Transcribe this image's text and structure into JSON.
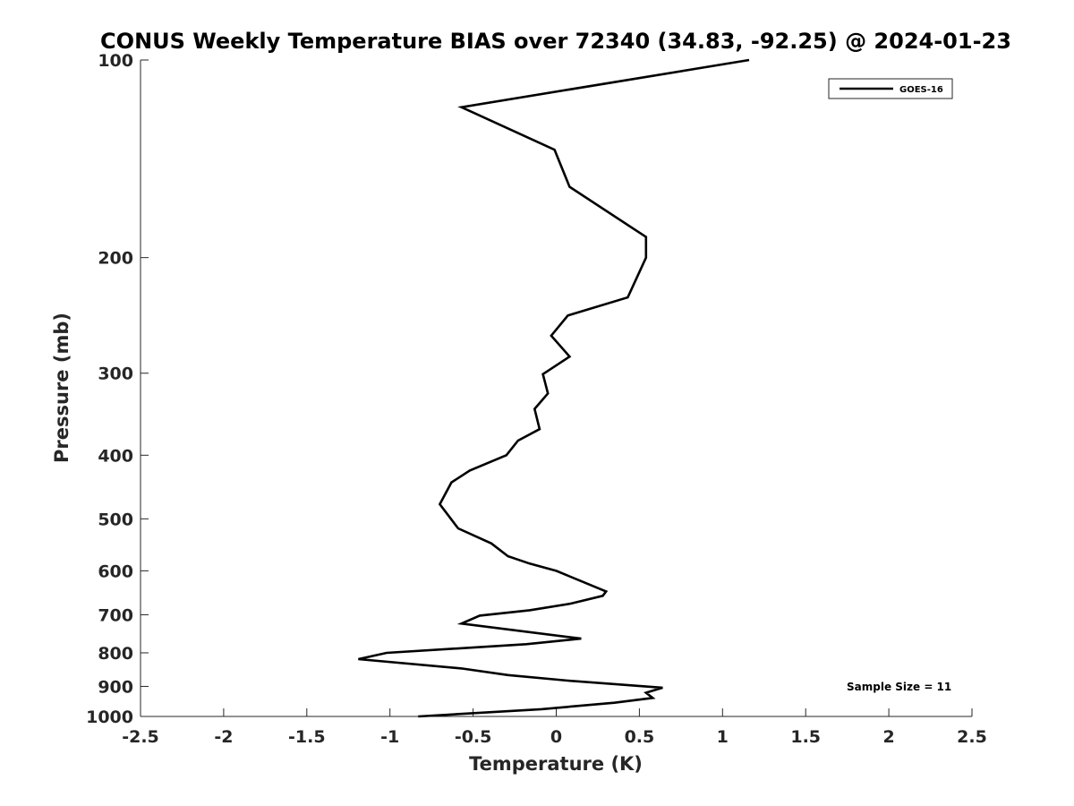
{
  "chart_data": {
    "type": "line",
    "title": "CONUS Weekly Temperature BIAS over 72340 (34.83, -92.25) @ 2024-01-23",
    "xlabel": "Temperature (K)",
    "ylabel": "Pressure (mb)",
    "xlim": [
      -2.5,
      2.5
    ],
    "ylim": [
      100,
      1000
    ],
    "y_scale": "log",
    "y_reversed": true,
    "grid": false,
    "legend_position": "top-right",
    "x_ticks": [
      "-2.5",
      "-2",
      "-1.5",
      "-1",
      "-0.5",
      "0",
      "0.5",
      "1",
      "1.5",
      "2",
      "2.5"
    ],
    "x_tick_values": [
      -2.5,
      -2,
      -1.5,
      -1,
      -0.5,
      0,
      0.5,
      1,
      1.5,
      2,
      2.5
    ],
    "y_ticks": [
      "100",
      "200",
      "300",
      "400",
      "500",
      "600",
      "700",
      "800",
      "900",
      "1000"
    ],
    "y_tick_values": [
      100,
      200,
      300,
      400,
      500,
      600,
      700,
      800,
      900,
      1000
    ],
    "series": [
      {
        "name": "GOES-16",
        "color": "#000000",
        "x": [
          1.16,
          -0.57,
          -0.01,
          0.08,
          0.54,
          0.54,
          0.43,
          0.07,
          -0.03,
          0.08,
          -0.08,
          -0.05,
          -0.13,
          -0.1,
          -0.23,
          -0.3,
          -0.52,
          -0.63,
          -0.7,
          -0.59,
          -0.39,
          -0.29,
          -0.16,
          0.0,
          0.3,
          0.28,
          0.09,
          -0.16,
          -0.46,
          -0.57,
          0.15,
          -0.18,
          -1.02,
          -1.19,
          -0.57,
          -0.29,
          0.07,
          0.64,
          0.54,
          0.58,
          0.35,
          -0.09,
          -0.83
        ],
        "y": [
          100,
          118,
          137,
          156,
          186,
          200,
          230,
          245,
          263,
          283,
          301,
          322,
          340,
          365,
          380,
          400,
          422,
          440,
          475,
          517,
          545,
          570,
          585,
          600,
          645,
          655,
          673,
          689,
          702,
          722,
          761,
          776,
          800,
          818,
          845,
          865,
          882,
          904,
          920,
          937,
          953,
          975,
          1000
        ]
      }
    ],
    "annotation": "Sample Size = 11"
  }
}
